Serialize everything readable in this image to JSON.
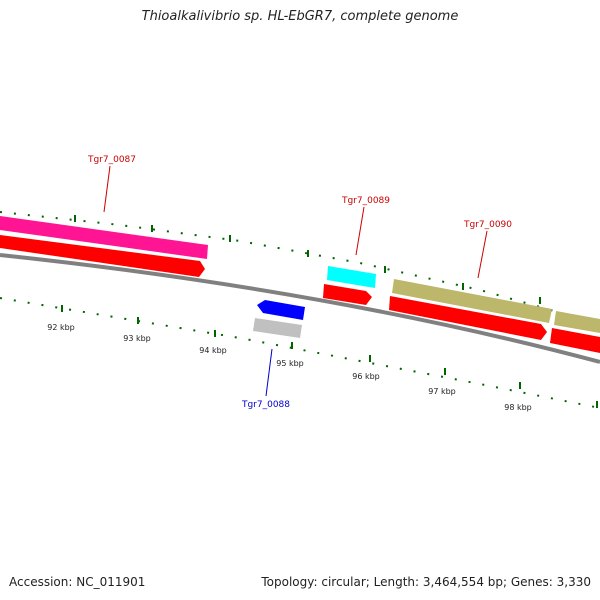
{
  "title": "Thioalkalivibrio sp. HL-EbGR7, complete genome",
  "footer": {
    "accession": "Accession: NC_011901",
    "summary": "Topology: circular; Length: 3,464,554 bp; Genes: 3,330"
  },
  "scale_labels": [
    "92 kbp",
    "93 kbp",
    "94 kbp",
    "95 kbp",
    "96 kbp",
    "97 kbp",
    "98 kbp"
  ],
  "genes": [
    {
      "label": "Tgr7_0087",
      "strand": "+",
      "label_color": "#cc0000"
    },
    {
      "label": "Tgr7_0088",
      "strand": "-",
      "label_color": "#0000cc"
    },
    {
      "label": "Tgr7_0089",
      "strand": "+",
      "label_color": "#cc0000"
    },
    {
      "label": "Tgr7_0090",
      "strand": "+",
      "label_color": "#cc0000"
    }
  ],
  "colors": {
    "backbone": "#808080",
    "cds": "#ff0000",
    "feature_0087": "#ff1493",
    "feature_0088_arrow": "#0000ff",
    "feature_0088_bar": "#c0c0c0",
    "feature_0089": "#00ffff",
    "feature_0090": "#bdb76b",
    "ticks": "#006400"
  }
}
